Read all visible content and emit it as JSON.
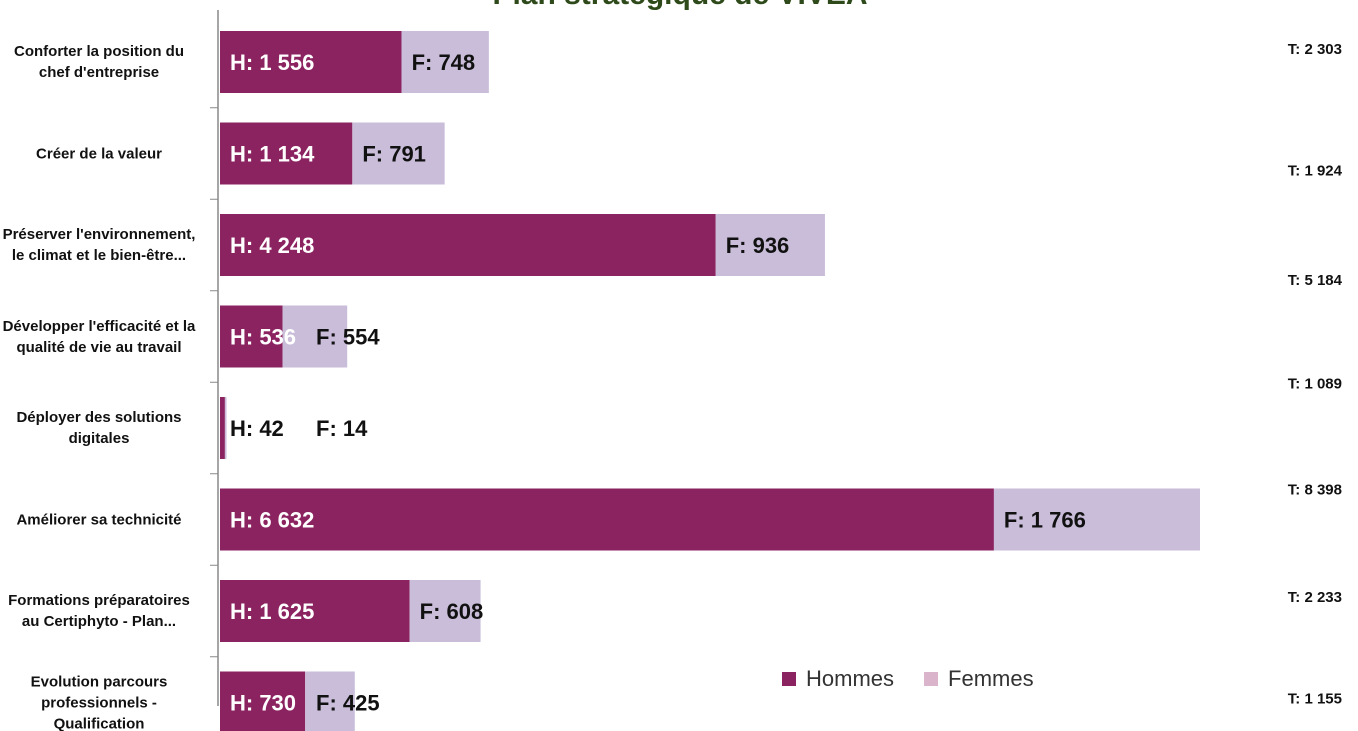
{
  "chart_data": {
    "type": "bar",
    "orientation": "horizontal",
    "stacked": true,
    "title": "Plan stratégique de VIVEA",
    "categories": [
      "Conforter la position du chef d'entreprise",
      "Créer de la valeur",
      "Préserver l'environnement, le climat et le bien-être...",
      "Développer l'efficacité et la qualité de vie au travail",
      "Déployer des solutions digitales",
      "Améliorer sa technicité",
      "Formations préparatoires au Certiphyto - Plan...",
      "Evolution parcours professionnels - Qualification"
    ],
    "series": [
      {
        "name": "Hommes",
        "color": "#8b2360",
        "legend_color": "#8b2360",
        "values": [
          1556,
          1134,
          4248,
          536,
          42,
          6632,
          1625,
          730
        ],
        "value_labels": [
          "H: 1 556",
          "H: 1 134",
          "H: 4 248",
          "H: 536",
          "H: 42",
          "H: 6 632",
          "H: 1 625",
          "H: 730"
        ]
      },
      {
        "name": "Femmes",
        "color": "#c9bdd9",
        "legend_color": "#d9b4cb",
        "values": [
          748,
          791,
          936,
          554,
          14,
          1766,
          608,
          425
        ],
        "value_labels": [
          "F: 748",
          "F: 791",
          "F: 936",
          "F: 554",
          "F: 14",
          "F: 1 766",
          "F: 608",
          "F: 425"
        ]
      }
    ],
    "totals": [
      2303,
      1924,
      5184,
      1089,
      null,
      8398,
      2233,
      1155
    ],
    "total_labels": [
      "T: 2 303",
      "T: 1 924",
      "T: 5 184",
      "T: 1 089",
      null,
      "T: 8 398",
      "T: 2 233",
      "T: 1 155"
    ],
    "legend": "bottom-right"
  }
}
